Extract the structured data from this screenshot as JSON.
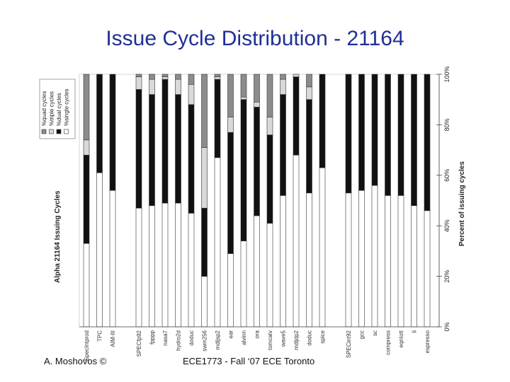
{
  "slide": {
    "title": "Issue Cycle Distribution - 21164",
    "footer_left": "A. Moshovos ©",
    "footer_center": "ECE1773 - Fall ‘07 ECE Toronto"
  },
  "chart_data": {
    "type": "bar",
    "orientation": "horizontal-stacked",
    "title": "Alpha 21164 Issuing Cycles",
    "value_axis_label": "Percent of issuing cycles",
    "value_ticks": [
      "0%",
      "20%",
      "40%",
      "60%",
      "80%",
      "100%"
    ],
    "xlim": [
      0,
      100
    ],
    "grid": false,
    "legend_position": "top-left",
    "colors": {
      "single": "#ffffff",
      "dual": "#111111",
      "triple": "#d9d9d9",
      "quad": "#8c8c8c",
      "outline": "#333333"
    },
    "series": [
      {
        "name": "%single cycles",
        "key": "single"
      },
      {
        "name": "%dual cycles",
        "key": "dual"
      },
      {
        "name": "%triple cycles",
        "key": "triple"
      },
      {
        "name": "%quad cycles",
        "key": "quad"
      }
    ],
    "legend_order": [
      "%quad cycles",
      "%triple cycles",
      "%dual cycles",
      "%single cycles"
    ],
    "categories": [
      "SpecIntprod",
      "TPC",
      "AIM-III",
      "",
      "SPECfp92",
      "fpppp",
      "nasa7",
      "hydro2d",
      "doduc",
      "swm256",
      "mdljsp2",
      "ear",
      "alvinn",
      "ora",
      "tomcatv",
      "wave5",
      "mdljdp2",
      "doduc",
      "spice",
      "",
      "SPECint92",
      "gcc",
      "sc",
      "compress",
      "eqntott",
      "li",
      "espresso"
    ],
    "bars": [
      {
        "single": 33,
        "dual": 35,
        "triple": 6,
        "quad": 26
      },
      {
        "single": 61,
        "dual": 39,
        "triple": 0,
        "quad": 0
      },
      {
        "single": 54,
        "dual": 46,
        "triple": 0,
        "quad": 0
      },
      null,
      {
        "single": 47,
        "dual": 47,
        "triple": 5,
        "quad": 1
      },
      {
        "single": 48,
        "dual": 44,
        "triple": 6,
        "quad": 2
      },
      {
        "single": 49,
        "dual": 49,
        "triple": 1,
        "quad": 1
      },
      {
        "single": 49,
        "dual": 43,
        "triple": 6,
        "quad": 2
      },
      {
        "single": 45,
        "dual": 43,
        "triple": 8,
        "quad": 4
      },
      {
        "single": 20,
        "dual": 27,
        "triple": 24,
        "quad": 29
      },
      {
        "single": 67,
        "dual": 31,
        "triple": 1,
        "quad": 1
      },
      {
        "single": 29,
        "dual": 48,
        "triple": 6,
        "quad": 17
      },
      {
        "single": 34,
        "dual": 56,
        "triple": 1,
        "quad": 9
      },
      {
        "single": 44,
        "dual": 43,
        "triple": 2,
        "quad": 11
      },
      {
        "single": 41,
        "dual": 35,
        "triple": 7,
        "quad": 17
      },
      {
        "single": 52,
        "dual": 40,
        "triple": 6,
        "quad": 2
      },
      {
        "single": 68,
        "dual": 31,
        "triple": 1,
        "quad": 0
      },
      {
        "single": 53,
        "dual": 37,
        "triple": 5,
        "quad": 5
      },
      {
        "single": 63,
        "dual": 37,
        "triple": 0,
        "quad": 0
      },
      null,
      {
        "single": 53,
        "dual": 47,
        "triple": 0,
        "quad": 0
      },
      {
        "single": 54,
        "dual": 46,
        "triple": 0,
        "quad": 0
      },
      {
        "single": 56,
        "dual": 44,
        "triple": 0,
        "quad": 0
      },
      {
        "single": 52,
        "dual": 48,
        "triple": 0,
        "quad": 0
      },
      {
        "single": 52,
        "dual": 48,
        "triple": 0,
        "quad": 0
      },
      {
        "single": 48,
        "dual": 52,
        "triple": 0,
        "quad": 0
      },
      {
        "single": 46,
        "dual": 54,
        "triple": 0,
        "quad": 0
      }
    ]
  }
}
